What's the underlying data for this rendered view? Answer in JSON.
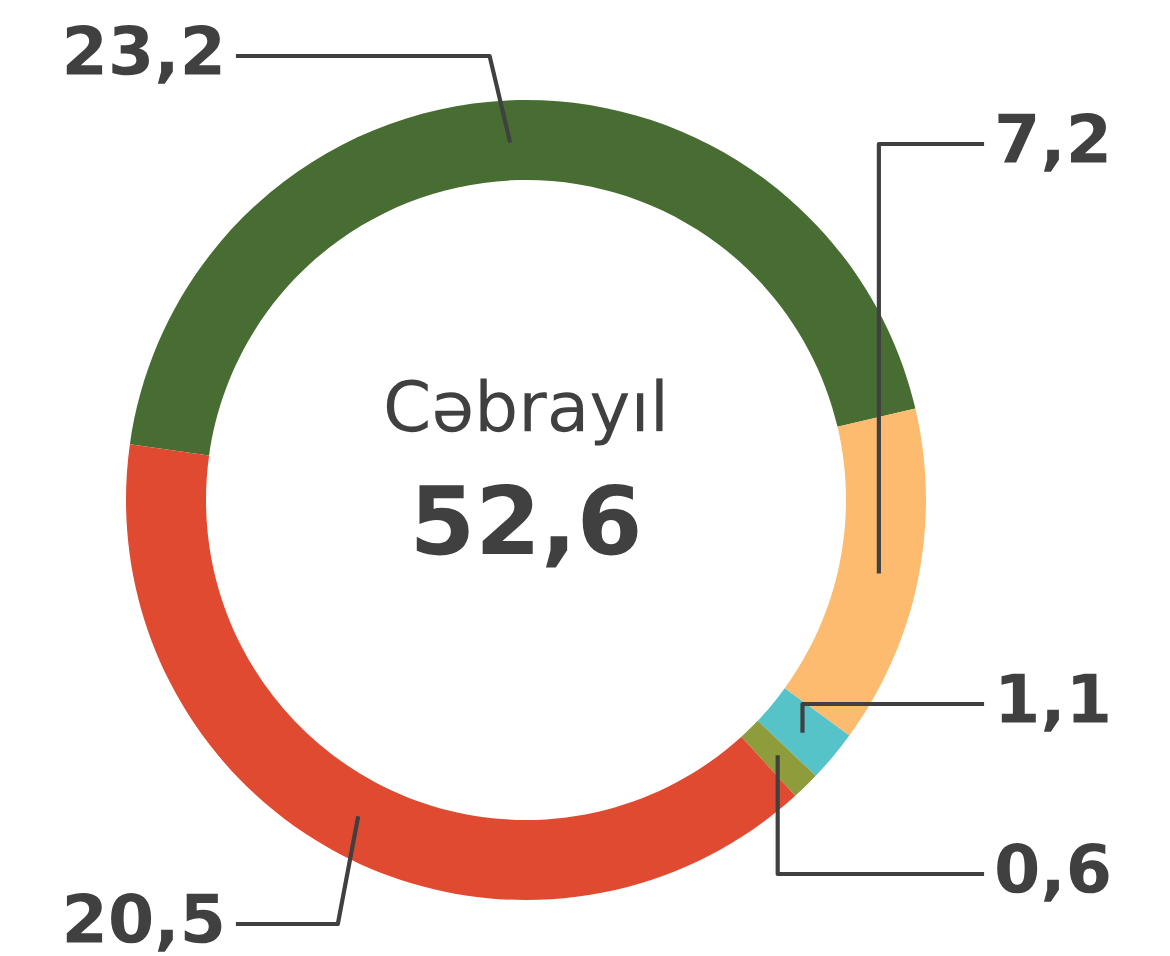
{
  "chart_data": {
    "type": "donut",
    "title": "Cəbrayıl",
    "annotations": [
      "52,6"
    ],
    "categories": [
      null,
      null,
      null,
      null,
      null
    ],
    "values": [
      23.2,
      7.2,
      1.1,
      0.6,
      20.5
    ],
    "colors": [
      "#486d33",
      "#fdbb6f",
      "#56c3c9",
      "#8f9c3b",
      "#e04a31"
    ],
    "value_labels": [
      "23,2",
      "7,2",
      "1,1",
      "0,6",
      "20,5"
    ]
  }
}
